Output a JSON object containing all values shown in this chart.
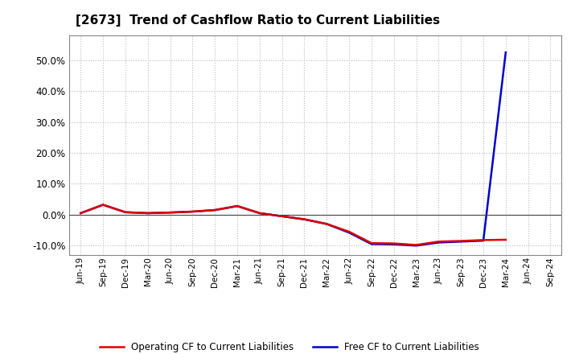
{
  "title": "[2673]  Trend of Cashflow Ratio to Current Liabilities",
  "x_labels": [
    "Jun-19",
    "Sep-19",
    "Dec-19",
    "Mar-20",
    "Jun-20",
    "Sep-20",
    "Dec-20",
    "Mar-21",
    "Jun-21",
    "Sep-21",
    "Dec-21",
    "Mar-22",
    "Jun-22",
    "Sep-22",
    "Dec-22",
    "Mar-23",
    "Jun-23",
    "Sep-23",
    "Dec-23",
    "Mar-24",
    "Jun-24",
    "Sep-24"
  ],
  "operating_cf": [
    0.5,
    3.2,
    0.8,
    0.5,
    0.7,
    1.0,
    1.5,
    2.8,
    0.5,
    -0.5,
    -1.5,
    -3.0,
    -5.5,
    -9.2,
    -9.3,
    -9.8,
    -8.7,
    -8.5,
    -8.2,
    -8.1,
    null,
    null
  ],
  "free_cf": [
    0.5,
    3.2,
    0.8,
    0.5,
    0.7,
    1.0,
    1.5,
    2.8,
    0.5,
    -0.5,
    -1.5,
    -3.0,
    -5.8,
    -9.5,
    -9.6,
    -10.0,
    -9.0,
    -8.7,
    -8.4,
    52.5,
    null,
    null
  ],
  "operating_color": "#dd0000",
  "free_color": "#0000cc",
  "ylim": [
    -13,
    58
  ],
  "yticks": [
    -10.0,
    0.0,
    10.0,
    20.0,
    30.0,
    40.0,
    50.0
  ],
  "background_color": "#ffffff",
  "plot_bg_color": "#ffffff",
  "grid_color": "#bbbbbb",
  "title_fontsize": 11,
  "legend_operating": "Operating CF to Current Liabilities",
  "legend_free": "Free CF to Current Liabilities"
}
